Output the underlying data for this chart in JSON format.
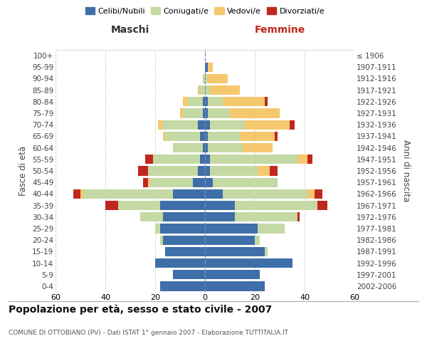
{
  "age_groups": [
    "0-4",
    "5-9",
    "10-14",
    "15-19",
    "20-24",
    "25-29",
    "30-34",
    "35-39",
    "40-44",
    "45-49",
    "50-54",
    "55-59",
    "60-64",
    "65-69",
    "70-74",
    "75-79",
    "80-84",
    "85-89",
    "90-94",
    "95-99",
    "100+"
  ],
  "birth_years": [
    "2002-2006",
    "1997-2001",
    "1992-1996",
    "1987-1991",
    "1982-1986",
    "1977-1981",
    "1972-1976",
    "1967-1971",
    "1962-1966",
    "1957-1961",
    "1952-1956",
    "1947-1951",
    "1942-1946",
    "1937-1941",
    "1932-1936",
    "1927-1931",
    "1922-1926",
    "1917-1921",
    "1912-1916",
    "1907-1911",
    "≤ 1906"
  ],
  "maschi": {
    "celibi": [
      18,
      13,
      20,
      16,
      17,
      18,
      17,
      18,
      13,
      5,
      3,
      2,
      1,
      2,
      3,
      1,
      1,
      0,
      0,
      0,
      0
    ],
    "coniugati": [
      0,
      0,
      0,
      0,
      1,
      2,
      9,
      17,
      36,
      17,
      20,
      19,
      12,
      14,
      14,
      8,
      6,
      2,
      1,
      0,
      0
    ],
    "vedovi": [
      0,
      0,
      0,
      0,
      0,
      0,
      0,
      0,
      1,
      1,
      0,
      0,
      0,
      1,
      2,
      1,
      2,
      1,
      0,
      0,
      0
    ],
    "divorziati": [
      0,
      0,
      0,
      0,
      0,
      0,
      0,
      5,
      3,
      2,
      4,
      3,
      0,
      0,
      0,
      0,
      0,
      0,
      0,
      0,
      0
    ]
  },
  "femmine": {
    "nubili": [
      24,
      22,
      35,
      24,
      20,
      21,
      12,
      12,
      7,
      3,
      2,
      2,
      1,
      1,
      2,
      1,
      1,
      0,
      0,
      1,
      0
    ],
    "coniugate": [
      0,
      0,
      0,
      1,
      2,
      11,
      25,
      33,
      34,
      26,
      19,
      35,
      14,
      13,
      14,
      9,
      6,
      2,
      1,
      0,
      0
    ],
    "vedove": [
      0,
      0,
      0,
      0,
      0,
      0,
      0,
      0,
      3,
      0,
      5,
      4,
      12,
      14,
      18,
      20,
      17,
      12,
      8,
      2,
      0
    ],
    "divorziate": [
      0,
      0,
      0,
      0,
      0,
      0,
      1,
      4,
      3,
      0,
      3,
      2,
      0,
      1,
      2,
      0,
      1,
      0,
      0,
      0,
      0
    ]
  },
  "color_celibi": "#3e6fa8",
  "color_coniugati": "#c5d9a4",
  "color_vedovi": "#f5c86e",
  "color_divorziati": "#c0271d",
  "title": "Popolazione per età, sesso e stato civile - 2007",
  "subtitle": "COMUNE DI OTTOBIANO (PV) - Dati ISTAT 1° gennaio 2007 - Elaborazione TUTTITALIA.IT",
  "xlabel_left": "Maschi",
  "xlabel_right": "Femmine",
  "ylabel_left": "Fasce di età",
  "ylabel_right": "Anni di nascita",
  "xlim": 60,
  "bg_color": "#ffffff",
  "grid_color": "#cccccc"
}
